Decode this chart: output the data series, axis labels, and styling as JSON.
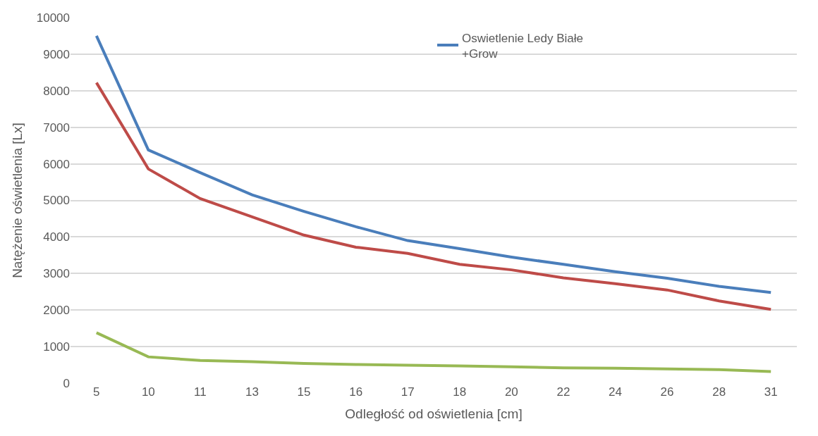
{
  "chart_data": {
    "type": "line",
    "xlabel": "Odległość od oświetlenia [cm]",
    "ylabel": "Natężenie oświetlenia [Lx]",
    "categories": [
      "5",
      "10",
      "11",
      "13",
      "15",
      "16",
      "17",
      "18",
      "20",
      "22",
      "24",
      "26",
      "28",
      "31"
    ],
    "series": [
      {
        "name": "Oswietlenie Ledy Białe +Grow",
        "color": "#4a7ebb",
        "values": [
          9500,
          6380,
          5760,
          5150,
          4700,
          4280,
          3900,
          3680,
          3450,
          3250,
          3050,
          2870,
          2650,
          2480
        ]
      },
      {
        "color": "#be4b48",
        "values": [
          8220,
          5860,
          5050,
          4550,
          4050,
          3720,
          3550,
          3250,
          3100,
          2880,
          2720,
          2550,
          2250,
          2020
        ]
      },
      {
        "color": "#98b954",
        "values": [
          1380,
          720,
          620,
          590,
          540,
          510,
          490,
          470,
          450,
          420,
          410,
          390,
          370,
          320
        ]
      }
    ],
    "ylim": [
      0,
      10000
    ],
    "yticks": [
      0,
      1000,
      2000,
      3000,
      4000,
      5000,
      6000,
      7000,
      8000,
      9000,
      10000
    ],
    "grid": "y",
    "legend": "top right",
    "marker": "none",
    "line_style": "solid"
  }
}
